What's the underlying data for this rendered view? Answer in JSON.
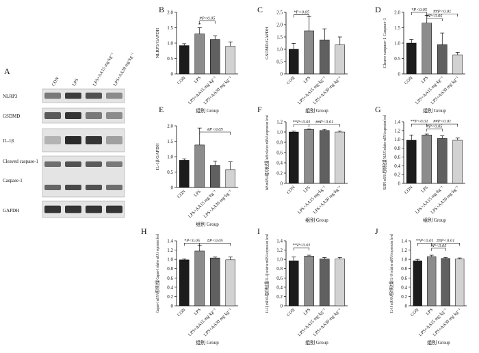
{
  "colors": {
    "bars": [
      "#1c1c1c",
      "#8c8c8c",
      "#606060",
      "#d2d2d2"
    ],
    "axis": "#000000",
    "blot_bg": "#e4e4e4",
    "blot_band": "#202020"
  },
  "western_blot": {
    "panel_letter": "A",
    "lane_labels": [
      "CON",
      "LPS",
      "LPS+AA15 mg·kg⁻¹",
      "LPS+AA30 mg·kg⁻¹"
    ],
    "bands": [
      {
        "label": "NLRP3",
        "intensity": [
          0.55,
          0.85,
          0.75,
          0.45
        ]
      },
      {
        "label": "GSDMD",
        "intensity": [
          0.7,
          0.9,
          0.55,
          0.45
        ]
      },
      {
        "label": "IL-1β",
        "intensity": [
          0.25,
          0.95,
          0.9,
          0.35
        ]
      },
      {
        "label": "Cleaved caspase-1",
        "intensity": [
          0.6,
          0.75,
          0.7,
          0.55
        ]
      },
      {
        "label": "Caspase-1",
        "intensity": [
          0.65,
          0.8,
          0.75,
          0.6
        ]
      },
      {
        "label": "GAPDH",
        "intensity": [
          0.9,
          0.9,
          0.9,
          0.9
        ]
      }
    ]
  },
  "chart_data": [
    {
      "panel": "B",
      "type": "bar",
      "categories": [
        "CON",
        "LPS",
        "LPS+AA15 mg·kg⁻¹",
        "LPS+AA30 mg·kg⁻¹"
      ],
      "values": [
        0.92,
        1.3,
        1.12,
        0.9
      ],
      "errors": [
        0.06,
        0.2,
        0.12,
        0.14
      ],
      "ylabel": "NLRP3/GAPDH",
      "xlabel": "组别 Group",
      "ylim": [
        0,
        2.0
      ],
      "yticks": [
        0,
        0.5,
        1.0,
        1.5,
        2.0
      ],
      "annotations": [
        {
          "bar": 1,
          "text": "*",
          "kind": "mark"
        },
        {
          "bar": 1,
          "text": "#P<0.05",
          "kind": "bracket",
          "from": 1,
          "to": 2,
          "level": 1.72
        }
      ]
    },
    {
      "panel": "C",
      "type": "bar",
      "categories": [
        "CON",
        "LPS",
        "LPS+AA15 mg·kg⁻¹",
        "LPS+AA30 mg·kg⁻¹"
      ],
      "values": [
        1.0,
        1.75,
        1.38,
        1.18
      ],
      "errors": [
        0.24,
        0.58,
        0.45,
        0.32
      ],
      "ylabel": "GSDMD/GAPDH",
      "xlabel": "组别 Group",
      "ylim": [
        0,
        2.5
      ],
      "yticks": [
        0,
        0.5,
        1.0,
        1.5,
        2.0,
        2.5
      ],
      "annotations": [
        {
          "text": "*P<0.05",
          "kind": "bracket",
          "from": 0,
          "to": 1,
          "level": 2.4
        }
      ]
    },
    {
      "panel": "D",
      "type": "bar",
      "categories": [
        "CON",
        "LPS",
        "LPS+AA15 mg·kg⁻¹",
        "LPS+AA30 mg·kg⁻¹"
      ],
      "values": [
        1.0,
        1.65,
        0.95,
        0.62
      ],
      "errors": [
        0.12,
        0.25,
        0.38,
        0.08
      ],
      "ylabel": "Cleave caspase-1 Caspase-1",
      "xlabel": "组别 Group",
      "ylim": [
        0,
        2.0
      ],
      "yticks": [
        0,
        0.5,
        1.0,
        1.5,
        2.0
      ],
      "annotations": [
        {
          "text": "*P<0.05",
          "kind": "bracket",
          "from": 0,
          "to": 1,
          "level": 2.0
        },
        {
          "text": "##P<0.01",
          "kind": "bracket",
          "from": 1,
          "to": 3,
          "level": 1.95
        },
        {
          "text": "#P<0.05",
          "kind": "bracket",
          "from": 1,
          "to": 2,
          "level": 1.8
        }
      ]
    },
    {
      "panel": "E",
      "type": "bar",
      "categories": [
        "CON",
        "LPS",
        "LPS+AA15 mg·kg⁻¹",
        "LPS+AA30 mg·kg⁻¹"
      ],
      "values": [
        0.88,
        1.38,
        0.72,
        0.58
      ],
      "errors": [
        0.05,
        0.55,
        0.14,
        0.25
      ],
      "ylabel": "IL-1β/GAPDH",
      "xlabel": "组别 Group",
      "ylim": [
        0,
        2.0
      ],
      "yticks": [
        0,
        0.5,
        1.0,
        1.5,
        2.0
      ],
      "annotations": [
        {
          "text": "#P<0.05",
          "kind": "bracket",
          "from": 1,
          "to": 3,
          "level": 1.8
        }
      ]
    },
    {
      "panel": "F",
      "type": "bar",
      "categories": [
        "CON",
        "LPS",
        "LPS+AA15 mg·kg⁻¹",
        "LPS+AA30 mg·kg⁻¹"
      ],
      "values": [
        1.0,
        1.05,
        1.03,
        1.0
      ],
      "errors": [
        0.02,
        0.01,
        0.02,
        0.02
      ],
      "ylabel": "IκB mRNA相对表达量 IκB relative mRNA expression level",
      "xlabel": "组别 Group",
      "ylim": [
        0,
        1.2
      ],
      "yticks": [
        0,
        0.2,
        0.4,
        0.6,
        0.8,
        1.0,
        1.2
      ],
      "annotations": [
        {
          "text": "**P<0.01",
          "kind": "bracket",
          "from": 0,
          "to": 1,
          "level": 1.15
        },
        {
          "text": "##P<0.01",
          "kind": "bracket",
          "from": 1,
          "to": 3,
          "level": 1.15
        }
      ]
    },
    {
      "panel": "G",
      "type": "bar",
      "categories": [
        "CON",
        "LPS",
        "LPS+AA15 mg·kg⁻¹",
        "LPS+AA30 mg·kg⁻¹"
      ],
      "values": [
        0.98,
        1.1,
        1.02,
        0.98
      ],
      "errors": [
        0.12,
        0.02,
        0.06,
        0.05
      ],
      "ylabel": "NLRP3 mRNA相对表达量 NLRP3 relative mRNA expression level",
      "xlabel": "组别 Group",
      "ylim": [
        0,
        1.4
      ],
      "yticks": [
        0,
        0.2,
        0.4,
        0.6,
        0.8,
        1.0,
        1.2,
        1.4
      ],
      "annotations": [
        {
          "text": "**P<0.01",
          "kind": "bracket",
          "from": 0,
          "to": 1,
          "level": 1.35
        },
        {
          "text": "##P<0.01",
          "kind": "bracket",
          "from": 1,
          "to": 3,
          "level": 1.35
        },
        {
          "text": "#P<0.05",
          "kind": "bracket",
          "from": 1,
          "to": 2,
          "level": 1.24
        }
      ]
    },
    {
      "panel": "H",
      "type": "bar",
      "categories": [
        "CON",
        "LPS",
        "LPS+AA15 mg·kg⁻¹",
        "LPS+AA30 mg·kg⁻¹"
      ],
      "values": [
        0.99,
        1.18,
        1.03,
        0.99
      ],
      "errors": [
        0.02,
        0.12,
        0.02,
        0.06
      ],
      "ylabel": "Caspase-1 mRNA相对表达量 Caspase-1 relative mRNA expression level",
      "xlabel": "组别 Group",
      "ylim": [
        0,
        1.4
      ],
      "yticks": [
        0,
        0.2,
        0.4,
        0.6,
        0.8,
        1.0,
        1.2,
        1.4
      ],
      "annotations": [
        {
          "text": "*P<0.05",
          "kind": "bracket",
          "from": 0,
          "to": 1,
          "level": 1.35
        },
        {
          "text": "#P<0.05",
          "kind": "bracket",
          "from": 1,
          "to": 3,
          "level": 1.35
        }
      ]
    },
    {
      "panel": "I",
      "type": "bar",
      "categories": [
        "CON",
        "LPS",
        "LPS+AA15 mg·kg⁻¹",
        "LPS+AA30 mg·kg⁻¹"
      ],
      "values": [
        0.97,
        1.07,
        1.01,
        1.01
      ],
      "errors": [
        0.08,
        0.02,
        0.03,
        0.03
      ],
      "ylabel": "IL-1β mRNA相对表达量 IL-1β relative mRNA expression level",
      "xlabel": "组别 Group",
      "ylim": [
        0,
        1.4
      ],
      "yticks": [
        0,
        0.2,
        0.4,
        0.6,
        0.8,
        1.0,
        1.2,
        1.4
      ],
      "annotations": [
        {
          "text": "**P<0.01",
          "kind": "bracket",
          "from": 0,
          "to": 1,
          "level": 1.25
        }
      ]
    },
    {
      "panel": "J",
      "type": "bar",
      "categories": [
        "CON",
        "LPS",
        "LPS+AA15 mg·kg⁻¹",
        "LPS+AA30 mg·kg⁻¹"
      ],
      "values": [
        0.97,
        1.06,
        1.02,
        1.01
      ],
      "errors": [
        0.03,
        0.03,
        0.02,
        0.02
      ],
      "ylabel": "IL-18 mRNA相对表达量 IL-18 relative mRNA expression level",
      "xlabel": "组别 Group",
      "ylim": [
        0,
        1.4
      ],
      "yticks": [
        0,
        0.2,
        0.4,
        0.6,
        0.8,
        1.0,
        1.2,
        1.4
      ],
      "annotations": [
        {
          "text": "**P<0.01",
          "kind": "bracket",
          "from": 0,
          "to": 1,
          "level": 1.35
        },
        {
          "text": "##P<0.01",
          "kind": "bracket",
          "from": 1,
          "to": 3,
          "level": 1.35
        },
        {
          "text": "#P<0.05",
          "kind": "bracket",
          "from": 1,
          "to": 2,
          "level": 1.24
        }
      ]
    }
  ]
}
